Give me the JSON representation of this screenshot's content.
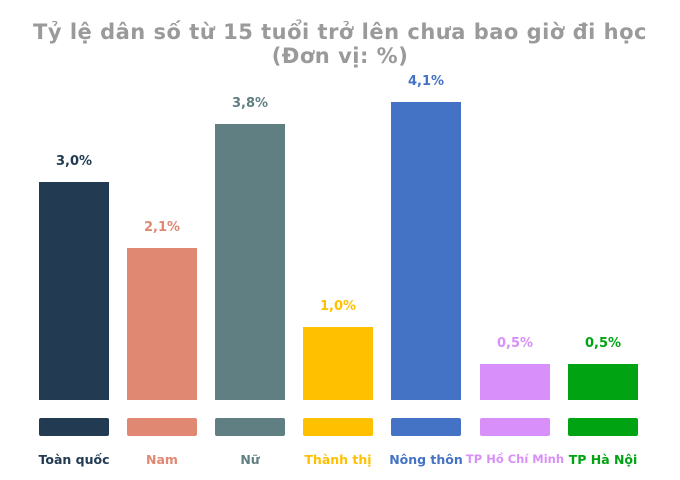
{
  "title": "Tỷ lệ dân số từ 15 tuổi trở lên chưa bao giờ đi học (Đơn vị: %)",
  "chart_data": {
    "type": "bar",
    "title": "Tỷ lệ dân số từ 15 tuổi trở lên chưa bao giờ đi học (Đơn vị: %)",
    "xlabel": "",
    "ylabel": "",
    "unit": "%",
    "categories": [
      "Toàn quốc",
      "Nam",
      "Nữ",
      "Thành thị",
      "Nông thôn",
      "TP Hồ Chí Minh",
      "TP Hà Nội"
    ],
    "values": [
      3.0,
      2.1,
      3.8,
      1.0,
      4.1,
      0.5,
      0.5
    ],
    "value_labels": [
      "3,0%",
      "2,1%",
      "3,8%",
      "1,0%",
      "4,1%",
      "0,5%",
      "0,5%"
    ],
    "colors": [
      "#223a52",
      "#e08872",
      "#607f82",
      "#ffc000",
      "#4472c4",
      "#d98ff9",
      "#00a412"
    ],
    "grid": false,
    "legend_position": "bottom",
    "ylim": [
      0,
      4.5
    ]
  },
  "bars": [
    {
      "label": "Toàn quốc",
      "value_label": "3,0%",
      "color": "#223a52",
      "value": 3.0
    },
    {
      "label": "Nam",
      "value_label": "2,1%",
      "color": "#e08872",
      "value": 2.1
    },
    {
      "label": "Nữ",
      "value_label": "3,8%",
      "color": "#607f82",
      "value": 3.8
    },
    {
      "label": "Thành thị",
      "value_label": "1,0%",
      "color": "#ffc000",
      "value": 1.0
    },
    {
      "label": "Nông thôn",
      "value_label": "4,1%",
      "color": "#4472c4",
      "value": 4.1
    },
    {
      "label": "TP Hồ Chí Minh",
      "value_label": "0,5%",
      "color": "#d98ff9",
      "value": 0.5
    },
    {
      "label": "TP Hà Nội",
      "value_label": "0,5%",
      "color": "#00a412",
      "value": 0.5
    }
  ]
}
